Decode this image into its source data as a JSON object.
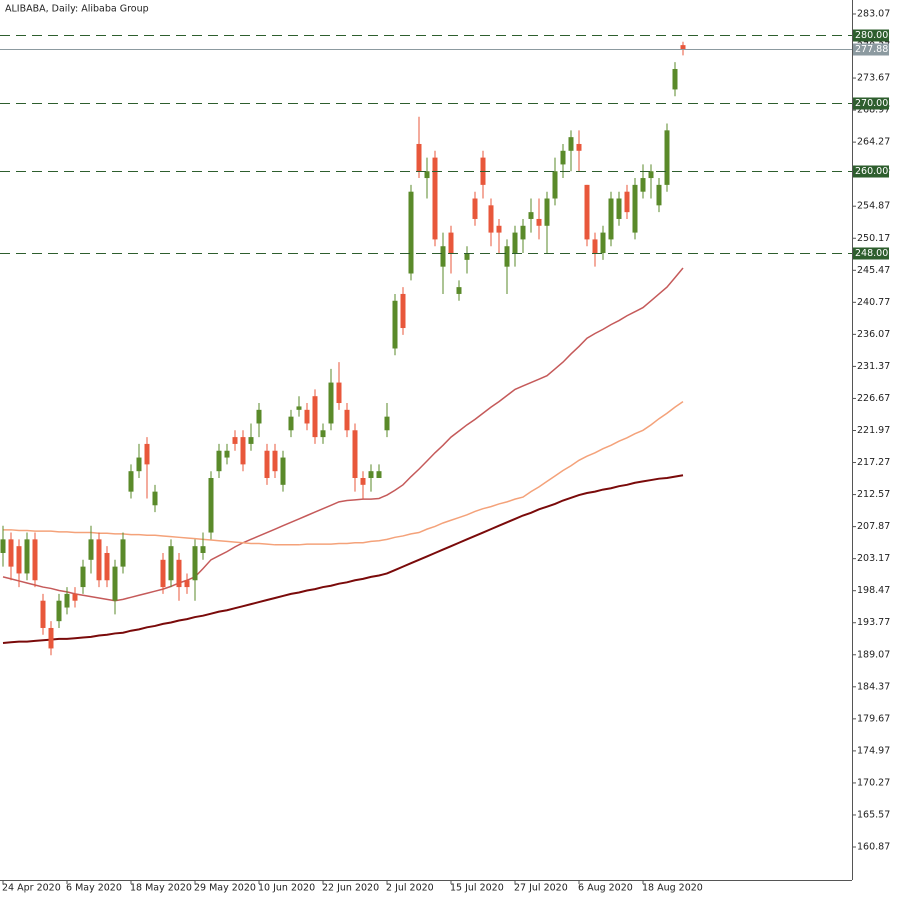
{
  "chart_data": {
    "type": "candlestick",
    "title": "ALIBABA, Daily:  Alibaba Group",
    "categories": [
      "24 Apr 2020",
      null,
      null,
      null,
      null,
      null,
      null,
      null,
      "6 May 2020",
      null,
      null,
      null,
      null,
      null,
      null,
      null,
      "18 May 2020",
      null,
      null,
      null,
      null,
      null,
      null,
      null,
      "29 May 2020",
      null,
      null,
      null,
      null,
      null,
      null,
      null,
      "10 Jun 2020",
      null,
      null,
      null,
      null,
      null,
      null,
      null,
      "22 Jun 2020",
      null,
      null,
      null,
      null,
      null,
      null,
      null,
      "2 Jul 2020",
      null,
      null,
      null,
      null,
      null,
      null,
      null,
      "15 Jul 2020",
      null,
      null,
      null,
      null,
      null,
      null,
      null,
      "27 Jul 2020",
      null,
      null,
      null,
      null,
      null,
      null,
      null,
      "6 Aug 2020",
      null,
      null,
      null,
      null,
      null,
      null,
      null,
      "18 Aug 2020",
      null,
      null,
      null,
      null,
      null
    ],
    "open": [
      204,
      206,
      205,
      201,
      206,
      197,
      193,
      194,
      196,
      198,
      199,
      203,
      206,
      204,
      197,
      202,
      213,
      216,
      220,
      211,
      203,
      200,
      203,
      200,
      200,
      204,
      207,
      216,
      218,
      221,
      221,
      220,
      223,
      219,
      219,
      214,
      222,
      225,
      225,
      227,
      221,
      223,
      229,
      225,
      222,
      215,
      215,
      215,
      222,
      234,
      242,
      245,
      264,
      259,
      262,
      246,
      251,
      242,
      247,
      256,
      262,
      255,
      252,
      246,
      248,
      250,
      253,
      253,
      252,
      256,
      261,
      263,
      264,
      258,
      250,
      248,
      250,
      253,
      257,
      251,
      257,
      259,
      255,
      258,
      272,
      278.5
    ],
    "high": [
      208,
      207,
      206,
      207,
      207,
      198,
      194,
      198,
      199,
      199,
      203,
      208,
      207,
      205,
      203,
      207,
      217,
      220,
      221,
      214,
      204,
      206,
      204,
      201,
      206,
      207,
      216,
      220,
      220,
      222,
      222,
      223,
      226,
      220,
      220,
      219,
      225,
      227,
      226,
      228,
      223,
      231,
      232,
      226,
      223,
      216,
      217,
      217,
      226,
      242,
      243,
      258,
      268,
      262,
      263,
      251,
      252,
      244,
      249,
      257,
      263,
      256,
      253,
      250,
      252,
      253,
      256,
      256,
      257,
      262,
      264,
      266,
      266,
      258,
      251,
      252,
      257,
      257,
      258,
      259,
      261,
      261,
      259,
      267,
      276,
      279
    ],
    "low": [
      202,
      200,
      199,
      200,
      199,
      192,
      189,
      193,
      195,
      196,
      198,
      201,
      199,
      199,
      195,
      201,
      212,
      215,
      212,
      210,
      198,
      199,
      197,
      198,
      197,
      203,
      206,
      215,
      217,
      219,
      216,
      219,
      221,
      214,
      215,
      213,
      221,
      224,
      222,
      220,
      220,
      222,
      225,
      221,
      213,
      212,
      213,
      215,
      221,
      233,
      236,
      244,
      259,
      256,
      249,
      242,
      245,
      241,
      245,
      252,
      256,
      249,
      248,
      242,
      246,
      248,
      251,
      250,
      248,
      255,
      259,
      260,
      260,
      249,
      246,
      247,
      249,
      252,
      253,
      250,
      256,
      256,
      254,
      257,
      271,
      277
    ],
    "close": [
      206,
      202,
      201,
      206,
      200,
      193,
      190,
      197,
      198,
      197,
      202,
      206,
      200,
      200,
      202,
      206,
      216,
      218,
      217,
      213,
      199,
      205,
      199,
      199,
      205,
      205,
      215,
      219,
      219,
      220,
      217,
      221,
      225,
      215,
      216,
      218,
      224,
      225.5,
      223,
      221,
      222,
      229,
      226,
      222,
      215,
      214,
      216,
      216,
      224,
      241,
      237,
      257,
      260,
      260,
      250,
      249,
      248,
      243,
      248,
      253,
      258,
      251,
      251,
      249,
      251,
      252,
      254,
      252,
      256,
      260,
      263,
      265,
      263,
      250,
      248,
      251,
      256,
      256,
      254,
      258,
      259,
      260,
      258,
      266,
      275,
      277.88
    ],
    "up_color": "#5a8a2a",
    "down_color": "#e8573b",
    "series": [
      {
        "color": "#c55a5a",
        "values": [
          200.5,
          200.2,
          199.9,
          199.6,
          199.3,
          199.0,
          198.8,
          198.5,
          198.3,
          198.0,
          197.8,
          197.6,
          197.4,
          197.2,
          197.0,
          197.2,
          197.5,
          197.8,
          198.1,
          198.4,
          198.7,
          199.1,
          199.6,
          200.0,
          200.5,
          201.7,
          203.0,
          203.6,
          204.2,
          204.9,
          205.5,
          206.0,
          206.5,
          207.0,
          207.5,
          208.0,
          208.5,
          209.0,
          209.5,
          210.0,
          210.5,
          211.0,
          211.5,
          211.7,
          211.8,
          211.9,
          211.9,
          212.0,
          212.5,
          213.2,
          214.0,
          215.2,
          216.3,
          217.5,
          218.7,
          219.8,
          221.0,
          221.9,
          222.8,
          223.6,
          224.5,
          225.4,
          226.2,
          227.1,
          228.0,
          228.5,
          229.0,
          229.5,
          230.0,
          231.0,
          232.0,
          233.2,
          234.3,
          235.5,
          236.2,
          236.8,
          237.5,
          238.1,
          238.8,
          239.4,
          240.0,
          241.0,
          242.0,
          243.0,
          244.4,
          245.8
        ]
      },
      {
        "color": "#f4a27a",
        "values": [
          207.4,
          207.4,
          207.3,
          207.3,
          207.2,
          207.2,
          207.2,
          207.1,
          207.1,
          207.0,
          207.0,
          207.0,
          206.9,
          206.9,
          206.8,
          206.8,
          206.7,
          206.7,
          206.6,
          206.6,
          206.5,
          206.4,
          206.3,
          206.2,
          206.1,
          206.0,
          205.9,
          205.8,
          205.7,
          205.6,
          205.5,
          205.4,
          205.4,
          205.3,
          205.2,
          205.2,
          205.2,
          205.2,
          205.3,
          205.3,
          205.3,
          205.3,
          205.4,
          205.4,
          205.5,
          205.5,
          205.7,
          205.8,
          206.0,
          206.3,
          206.5,
          206.8,
          207.0,
          207.5,
          207.9,
          208.4,
          208.8,
          209.2,
          209.6,
          210.1,
          210.5,
          210.8,
          211.2,
          211.5,
          211.9,
          212.2,
          213.0,
          213.7,
          214.5,
          215.3,
          216.1,
          216.8,
          217.6,
          218.2,
          218.7,
          219.3,
          219.8,
          220.4,
          220.9,
          221.5,
          222.0,
          222.8,
          223.7,
          224.5,
          225.4,
          226.2
        ]
      },
      {
        "color": "#7a0a0a",
        "values": [
          190.8,
          190.9,
          191.0,
          191.0,
          191.1,
          191.2,
          191.3,
          191.4,
          191.4,
          191.5,
          191.6,
          191.7,
          191.9,
          192.0,
          192.2,
          192.3,
          192.6,
          192.8,
          193.1,
          193.3,
          193.6,
          193.8,
          194.1,
          194.3,
          194.6,
          194.8,
          195.1,
          195.4,
          195.6,
          195.9,
          196.2,
          196.5,
          196.8,
          197.1,
          197.4,
          197.7,
          198.0,
          198.2,
          198.5,
          198.7,
          199.0,
          199.2,
          199.5,
          199.7,
          200.0,
          200.2,
          200.5,
          200.7,
          201.0,
          201.5,
          202.0,
          202.5,
          203.0,
          203.5,
          204.0,
          204.5,
          205.0,
          205.5,
          206.0,
          206.5,
          207.0,
          207.5,
          208.0,
          208.5,
          209.0,
          209.5,
          209.9,
          210.4,
          210.8,
          211.2,
          211.7,
          212.1,
          212.5,
          212.8,
          213.0,
          213.3,
          213.5,
          213.8,
          214.0,
          214.3,
          214.5,
          214.7,
          214.9,
          215.0,
          215.2,
          215.4
        ]
      }
    ],
    "levels": [
      {
        "value": 280,
        "label": "280.00"
      },
      {
        "value": 270,
        "label": "270.00"
      },
      {
        "value": 260,
        "label": "260.00"
      },
      {
        "value": 248,
        "label": "248.00"
      }
    ],
    "level_color": "#2e5e2e",
    "last_price": 277.88,
    "last_price_color": "#8c9aa0",
    "ylim": [
      156.03,
      285.12
    ],
    "yticks": [
      283.07,
      278.37,
      273.67,
      268.97,
      264.27,
      259.57,
      254.87,
      250.17,
      245.47,
      240.77,
      236.07,
      231.37,
      226.67,
      221.97,
      217.27,
      212.57,
      207.87,
      203.17,
      198.47,
      193.77,
      189.07,
      184.37,
      179.67,
      174.97,
      170.27,
      165.57,
      160.87
    ]
  }
}
